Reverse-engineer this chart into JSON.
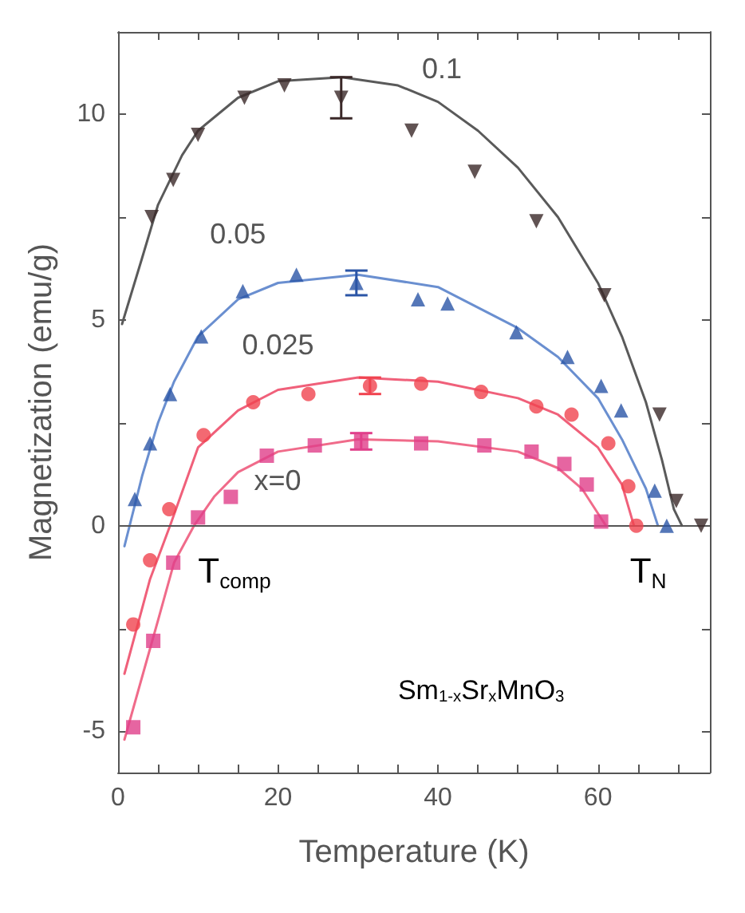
{
  "chart_data": {
    "type": "scatter",
    "xlabel": "Temperature (K)",
    "ylabel": "Magnetization (emu/g)",
    "xlim": [
      0,
      74
    ],
    "ylim": [
      -6,
      12
    ],
    "xticks": [
      0,
      {
        "value": 5,
        "label": null
      },
      {
        "value": 10,
        "label": null
      },
      {
        "value": 15,
        "label": null
      },
      20,
      {
        "value": 25,
        "label": null
      },
      {
        "value": 30,
        "label": null
      },
      {
        "value": 35,
        "label": null
      },
      40,
      {
        "value": 45,
        "label": null
      },
      {
        "value": 50,
        "label": null
      },
      {
        "value": 55,
        "label": null
      },
      60,
      {
        "value": 65,
        "label": null
      },
      {
        "value": 70,
        "label": null
      }
    ],
    "yticks": [
      -5,
      {
        "value": -2.5,
        "label": null
      },
      0,
      {
        "value": 2.5,
        "label": null
      },
      5,
      {
        "value": 7.5,
        "label": null
      },
      10
    ],
    "ref_lines": [
      {
        "axis": "y",
        "value": 0,
        "color": "#555555"
      }
    ],
    "annotations": [
      "T$_{comp}$",
      "T$_{N}$",
      "Sm$_{1-x}$Sr$_{x}$MnO$_{3}$"
    ],
    "series": [
      {
        "name": "0.1",
        "marker": "triangle",
        "color": "#3a2828",
        "x": [
          4.2,
          6.9,
          10.0,
          15.8,
          20.8,
          27.9,
          36.7,
          44.6,
          52.3,
          60.8,
          67.7,
          69.8,
          72.9
        ],
        "values": [
          7.5,
          8.4,
          9.5,
          10.4,
          10.7,
          10.4,
          9.6,
          8.6,
          7.4,
          5.6,
          2.7,
          0.6,
          0
        ],
        "errors": [
          null,
          null,
          null,
          null,
          null,
          0.5,
          null,
          null,
          null,
          null,
          null,
          null,
          null
        ]
      },
      {
        "name": "0.05",
        "marker": "triangle",
        "color": "#2b55a6",
        "x": [
          2.1,
          4.0,
          6.5,
          10.4,
          15.6,
          22.3,
          29.8,
          37.5,
          41.2,
          49.8,
          56.2,
          60.4,
          62.9,
          67.1,
          68.6
        ],
        "values": [
          0.65,
          2.0,
          3.2,
          4.6,
          5.7,
          6.1,
          5.9,
          5.5,
          5.4,
          4.7,
          4.1,
          3.4,
          2.8,
          0.85,
          0
        ],
        "errors": [
          null,
          null,
          null,
          null,
          null,
          null,
          0.3,
          null,
          null,
          null,
          null,
          null,
          null,
          null,
          null
        ]
      },
      {
        "name": "0.025",
        "marker": "circle",
        "color": "#f0434f",
        "x": [
          1.9,
          4.0,
          6.4,
          10.7,
          16.9,
          23.8,
          31.5,
          37.9,
          45.4,
          52.3,
          56.7,
          61.3,
          63.8,
          64.8
        ],
        "values": [
          -2.4,
          -0.84,
          0.4,
          2.2,
          3.0,
          3.2,
          3.4,
          3.45,
          3.25,
          2.9,
          2.7,
          2.0,
          0.96,
          0
        ],
        "errors": [
          null,
          null,
          null,
          null,
          null,
          null,
          0.2,
          null,
          null,
          null,
          null,
          null,
          null,
          null
        ]
      },
      {
        "name": "x=0",
        "marker": "square",
        "color": "#e03f8a",
        "x": [
          1.9,
          4.4,
          6.9,
          10.0,
          14.1,
          18.6,
          24.6,
          30.4,
          37.9,
          45.8,
          51.7,
          55.8,
          58.6,
          60.4
        ],
        "values": [
          -4.9,
          -2.8,
          -0.9,
          0.2,
          0.7,
          1.7,
          1.95,
          2.05,
          2.0,
          1.95,
          1.8,
          1.5,
          1.0,
          0.1
        ],
        "errors": [
          null,
          null,
          null,
          null,
          null,
          null,
          null,
          0.2,
          null,
          null,
          null,
          null,
          null,
          null
        ]
      },
      {
        "type": "line",
        "marker": "none",
        "color": "#5a5a5a",
        "x": [
          0.5,
          3,
          5,
          8,
          10,
          15,
          20,
          28,
          35,
          40,
          45,
          50,
          55,
          60,
          63,
          66,
          68,
          69.5,
          70.5
        ],
        "values": [
          4.9,
          6.5,
          7.8,
          9.0,
          9.6,
          10.4,
          10.8,
          10.9,
          10.7,
          10.3,
          9.6,
          8.7,
          7.5,
          5.9,
          4.6,
          3.0,
          1.6,
          0.4,
          0
        ]
      },
      {
        "type": "line",
        "marker": "none",
        "color": "#6a8fd0",
        "x": [
          0.8,
          3,
          5,
          7,
          10,
          15,
          20,
          30,
          40,
          50,
          55,
          60,
          63,
          65,
          66,
          67.5
        ],
        "values": [
          -0.5,
          1.2,
          2.5,
          3.5,
          4.6,
          5.5,
          5.9,
          6.1,
          5.8,
          4.8,
          4.1,
          3.1,
          2.1,
          1.3,
          0.9,
          0
        ]
      },
      {
        "type": "line",
        "marker": "none",
        "color": "#f0607a",
        "x": [
          0.8,
          4,
          6.5,
          10,
          15,
          20,
          30,
          40,
          50,
          55,
          60,
          63,
          64.5
        ],
        "values": [
          -3.6,
          -1.3,
          0,
          1.9,
          2.8,
          3.3,
          3.6,
          3.5,
          3.1,
          2.7,
          1.9,
          1.0,
          0
        ]
      },
      {
        "type": "line",
        "marker": "none",
        "color": "#f06b8a",
        "x": [
          0.8,
          5,
          7,
          9.5,
          12,
          15,
          20,
          30,
          40,
          50,
          55,
          58,
          60,
          61
        ],
        "values": [
          -5.2,
          -2.3,
          -0.9,
          0,
          0.7,
          1.3,
          1.8,
          2.1,
          2.05,
          1.8,
          1.4,
          0.9,
          0.3,
          0
        ]
      }
    ]
  }
}
